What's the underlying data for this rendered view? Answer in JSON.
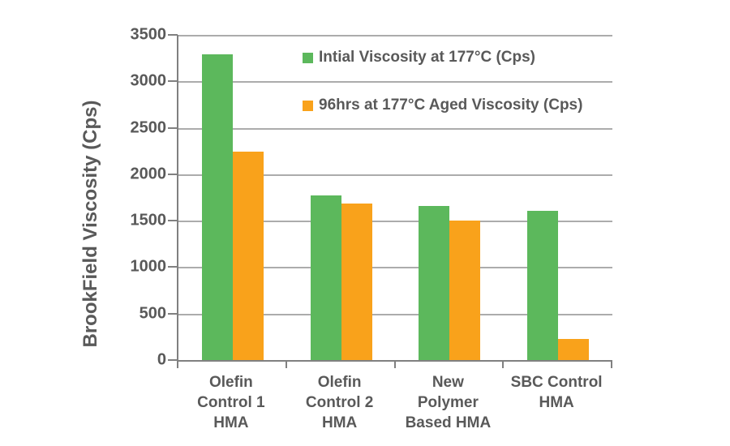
{
  "chart_data": {
    "type": "bar",
    "title": "",
    "ylabel": "BrookField Viscosity (Cps)",
    "xlabel": "",
    "ylim": [
      0,
      3500
    ],
    "ytick_step": 500,
    "yticks": [
      3500,
      3000,
      2500,
      2000,
      1500,
      1000,
      500,
      0
    ],
    "grid": true,
    "legend_position": "inside-top",
    "categories": [
      "Olefin Control 1 HMA",
      "Olefin Control 2 HMA",
      "New Polymer Based HMA",
      "SBC Control HMA"
    ],
    "categories_lines": [
      [
        "Olefin",
        "Control 1",
        "HMA"
      ],
      [
        "Olefin",
        "Control 2",
        "HMA"
      ],
      [
        "New",
        "Polymer",
        "Based HMA"
      ],
      [
        "SBC Control",
        "HMA"
      ]
    ],
    "series": [
      {
        "name": "Intial Viscosity at 177°C (Cps)",
        "color": "#5cb85c",
        "values": [
          3290,
          1775,
          1655,
          1610
        ]
      },
      {
        "name": "96hrs at 177°C Aged Viscosity (Cps)",
        "color": "#f9a21b",
        "values": [
          2245,
          1685,
          1500,
          230
        ]
      }
    ],
    "colors": {
      "grid": "#acacac",
      "axis": "#808080",
      "text": "#595959",
      "background": "#ffffff"
    }
  }
}
